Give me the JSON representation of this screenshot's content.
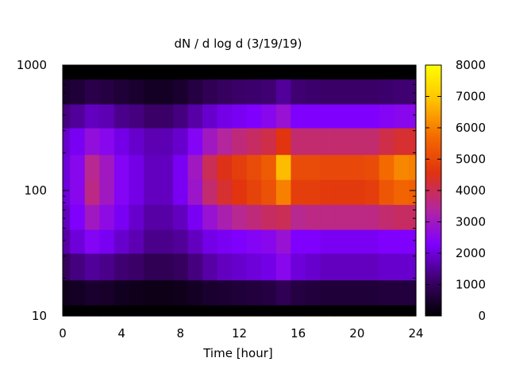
{
  "chart_data": {
    "type": "heatmap",
    "title": "dN / d log d (3/19/19)",
    "xlabel": "Time [hour]",
    "ylabel": "",
    "xlim": [
      0,
      24
    ],
    "ylim": [
      10,
      1000
    ],
    "y_scale": "log",
    "x_ticks": [
      "0",
      "4",
      "8",
      "12",
      "16",
      "20",
      "24"
    ],
    "y_ticks": [
      "10",
      "100",
      "1000"
    ],
    "colorbar": {
      "range": [
        0,
        8000
      ],
      "ticks": [
        "0",
        "1000",
        "2000",
        "3000",
        "4000",
        "5000",
        "6000",
        "7000",
        "8000"
      ],
      "colormap": [
        "#000000",
        "#3c006b",
        "#7f00ff",
        "#b4279a",
        "#e0330f",
        "#f46a00",
        "#ffc000",
        "#ffff00"
      ]
    },
    "x": [
      0,
      1,
      2,
      3,
      4,
      5,
      6,
      7,
      8,
      9,
      10,
      11,
      12,
      13,
      14,
      15,
      16,
      17,
      18,
      19,
      20,
      21,
      22,
      23,
      24
    ],
    "y": [
      10,
      15,
      25,
      40,
      60,
      100,
      150,
      250,
      400,
      600,
      1000
    ],
    "z": [
      [
        0,
        0,
        0,
        0,
        0,
        0,
        0,
        0,
        0,
        0,
        0,
        0,
        0,
        0,
        0,
        0,
        0,
        0,
        0,
        0,
        0,
        0,
        0,
        0,
        0
      ],
      [
        300,
        400,
        500,
        450,
        350,
        300,
        250,
        250,
        300,
        400,
        500,
        550,
        600,
        650,
        700,
        900,
        700,
        650,
        600,
        600,
        600,
        600,
        650,
        650,
        650
      ],
      [
        1000,
        1300,
        1500,
        1400,
        1200,
        1100,
        900,
        900,
        1000,
        1300,
        1600,
        1800,
        1900,
        2000,
        2100,
        2500,
        2000,
        1900,
        1800,
        1800,
        1800,
        1800,
        1900,
        1900,
        1900
      ],
      [
        1600,
        2000,
        2400,
        2200,
        1900,
        1700,
        1400,
        1400,
        1500,
        1800,
        2100,
        2200,
        2300,
        2400,
        2500,
        2800,
        2300,
        2300,
        2200,
        2200,
        2200,
        2200,
        2300,
        2300,
        2300
      ],
      [
        1800,
        2300,
        3000,
        2600,
        2200,
        1900,
        1600,
        1600,
        1800,
        2200,
        2800,
        3200,
        3500,
        3700,
        3900,
        4000,
        3500,
        3600,
        3600,
        3600,
        3600,
        3600,
        3800,
        3900,
        3900
      ],
      [
        2000,
        2500,
        3600,
        3000,
        2400,
        2100,
        1800,
        1800,
        2200,
        2900,
        3800,
        4300,
        4600,
        4900,
        5200,
        6000,
        4800,
        4800,
        4700,
        4700,
        4700,
        4800,
        5300,
        5600,
        5500
      ],
      [
        2000,
        2500,
        3500,
        3000,
        2400,
        2100,
        1800,
        1800,
        2200,
        3000,
        4000,
        4500,
        4800,
        5100,
        5400,
        6800,
        5100,
        5100,
        5000,
        5000,
        5000,
        5100,
        5700,
        6100,
        6000
      ],
      [
        1900,
        2200,
        2700,
        2500,
        2100,
        1900,
        1700,
        1700,
        1900,
        2400,
        3000,
        3400,
        3700,
        3900,
        4100,
        4600,
        3800,
        3800,
        3800,
        3800,
        3800,
        3800,
        4100,
        4300,
        4300
      ],
      [
        1300,
        1500,
        1800,
        1700,
        1400,
        1300,
        1100,
        1100,
        1300,
        1600,
        1900,
        2100,
        2200,
        2300,
        2500,
        2800,
        2300,
        2300,
        2300,
        2300,
        2300,
        2300,
        2400,
        2500,
        2500
      ],
      [
        500,
        600,
        800,
        700,
        600,
        500,
        400,
        400,
        500,
        700,
        900,
        1000,
        1100,
        1150,
        1200,
        1500,
        1200,
        1150,
        1100,
        1100,
        1100,
        1100,
        1150,
        1200,
        1200
      ],
      [
        0,
        0,
        0,
        0,
        0,
        0,
        0,
        0,
        0,
        0,
        0,
        0,
        0,
        0,
        0,
        0,
        0,
        0,
        0,
        0,
        0,
        0,
        0,
        0,
        0
      ]
    ]
  }
}
